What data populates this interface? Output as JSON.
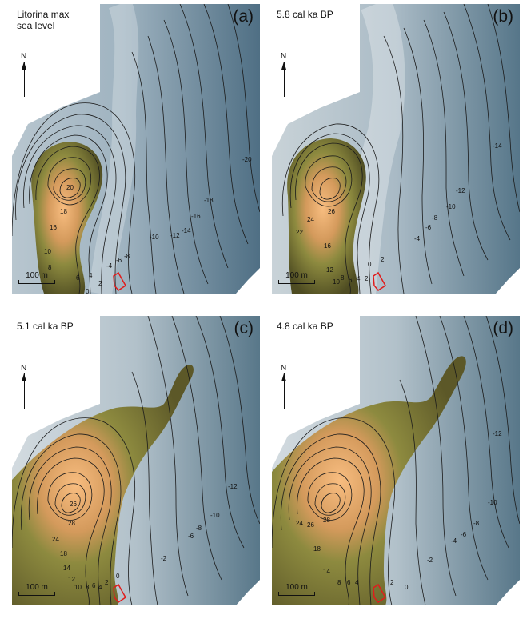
{
  "panels": [
    {
      "id": "a",
      "title": "Litorina max\nsea level",
      "letter": "(a)",
      "north": "N",
      "scale": "100 m",
      "contour_labels": [
        "20",
        "18",
        "16",
        "10",
        "8",
        "6",
        "4",
        "2",
        "0",
        "-4",
        "-6",
        "-8",
        "-10",
        "-12",
        "-14",
        "-16",
        "-18",
        "-20"
      ]
    },
    {
      "id": "b",
      "title": "5.8 cal ka BP",
      "letter": "(b)",
      "north": "N",
      "scale": "100 m",
      "contour_labels": [
        "26",
        "24",
        "22",
        "16",
        "12",
        "10",
        "8",
        "6",
        "4",
        "2",
        "0",
        "2",
        "-4",
        "-6",
        "-8",
        "-10",
        "-12",
        "-14"
      ]
    },
    {
      "id": "c",
      "title": "5.1 cal ka BP",
      "letter": "(c)",
      "north": "N",
      "scale": "100 m",
      "contour_labels": [
        "26",
        "28",
        "24",
        "18",
        "14",
        "12",
        "10",
        "8",
        "6",
        "4",
        "2",
        "0",
        "-2",
        "-6",
        "-8",
        "-10",
        "-12"
      ]
    },
    {
      "id": "d",
      "title": "4.8 cal ka BP",
      "letter": "(d)",
      "north": "N",
      "scale": "100 m",
      "contour_labels": [
        "24",
        "26",
        "28",
        "18",
        "14",
        "8",
        "6",
        "4",
        "2",
        "0",
        "-2",
        "-4",
        "-6",
        "-8",
        "-10",
        "-12"
      ]
    }
  ],
  "colors": {
    "water_deep": "#5f7d90",
    "water_shallow": "#c9d3d8",
    "land_low": "#5e5a2a",
    "land_high": "#f6b97a",
    "site_outline": "#e01c1c"
  }
}
